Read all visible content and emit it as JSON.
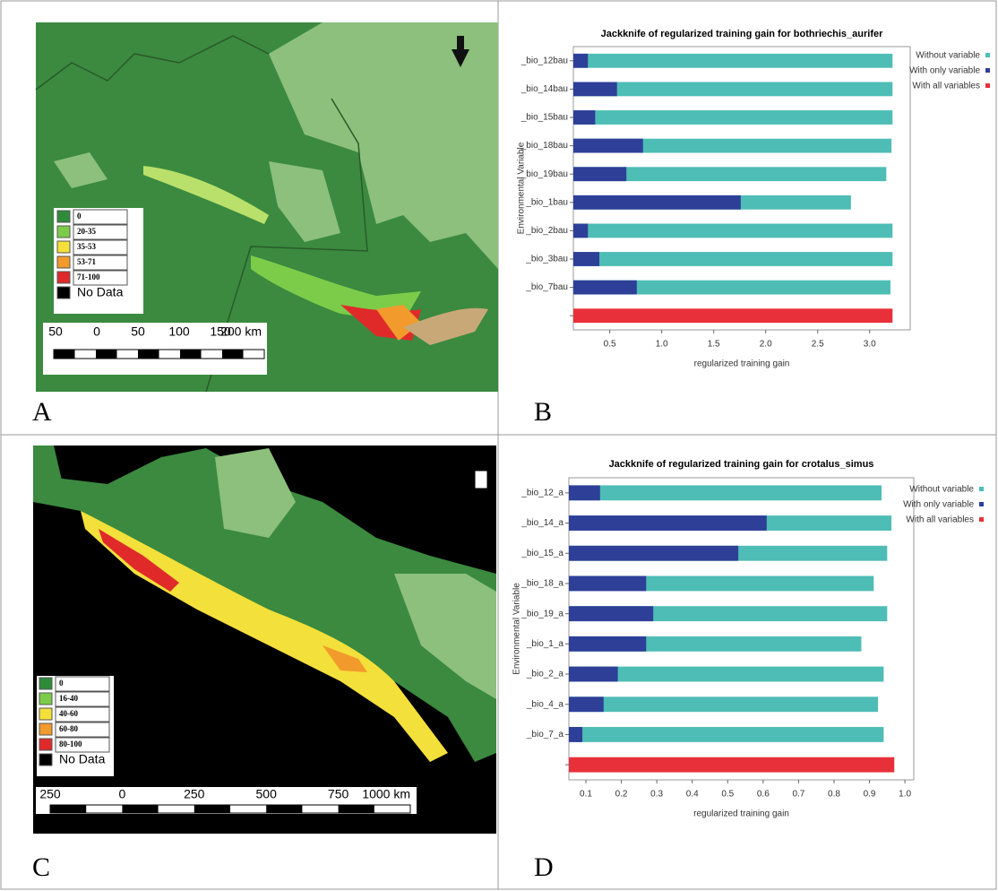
{
  "panel_labels": [
    "A",
    "B",
    "C",
    "D"
  ],
  "maps": [
    {
      "legend": [
        "0",
        "20-35",
        "35-53",
        "53-71",
        "71-100",
        "No Data"
      ],
      "legend_colors": [
        "#2e8b3a",
        "#7ccc4a",
        "#f4e03a",
        "#f39a2c",
        "#e02a2a",
        "#000000"
      ],
      "scale": [
        "50",
        "0",
        "50",
        "100",
        "150",
        "200 km"
      ]
    },
    {
      "legend": [
        "0",
        "16-40",
        "40-60",
        "60-80",
        "80-100",
        "No Data"
      ],
      "legend_colors": [
        "#2e8b3a",
        "#7ccc4a",
        "#f4e03a",
        "#f39a2c",
        "#e02a2a",
        "#000000"
      ],
      "scale": [
        "250",
        "0",
        "250",
        "500",
        "750",
        "1000 km"
      ]
    }
  ],
  "chart_data": [
    {
      "type": "barh",
      "title": "Jackknife of regularized training gain for bothriechis_aurifer",
      "xlabel": "regularized training gain",
      "ylabel": "Environmental Variable",
      "categories": [
        "_bio_12bau",
        "_bio_14bau",
        "_bio_15bau",
        "_bio_18bau",
        "_bio_19bau",
        "_bio_1bau",
        "_bio_2bau",
        "_bio_3bau",
        "_bio_7bau",
        null
      ],
      "series": [
        {
          "name": "Without variable",
          "color": "#4dbdb5",
          "values": [
            3.22,
            3.22,
            3.22,
            3.21,
            3.16,
            2.82,
            3.22,
            3.22,
            3.2,
            null
          ]
        },
        {
          "name": "With only variable",
          "color": "#2e3f98",
          "values": [
            0.29,
            0.57,
            0.36,
            0.82,
            0.66,
            1.76,
            0.29,
            0.4,
            0.76,
            null
          ]
        },
        {
          "name": "With all variables",
          "color": "#e8303a",
          "values": [
            null,
            null,
            null,
            null,
            null,
            null,
            null,
            null,
            null,
            3.22
          ]
        }
      ],
      "xlim": [
        0.15,
        3.39
      ],
      "xticks": [
        0.5,
        {
          "value": 1.0,
          "label": "1.0"
        },
        1.5,
        {
          "value": 2.0,
          "label": "2.0"
        },
        2.5,
        {
          "value": 3.0,
          "label": "3.0"
        }
      ],
      "grid": false,
      "legend": "right"
    },
    {
      "type": "barh",
      "title": "Jackknife of regularized training gain for crotalus_simus",
      "xlabel": "regularized training gain",
      "ylabel": "Environmental Variable",
      "categories": [
        "_bio_12_a",
        "_bio_14_a",
        "_bio_15_a",
        "_bio_18_a",
        "_bio_19_a",
        "_bio_1_a",
        "_bio_2_a",
        "_bio_4_a",
        "_bio_7_a",
        null
      ],
      "series": [
        {
          "name": "Without variable",
          "color": "#4dbdb5",
          "values": [
            0.934,
            0.962,
            0.95,
            0.912,
            0.95,
            0.877,
            0.94,
            0.924,
            0.94,
            null
          ]
        },
        {
          "name": "With only variable",
          "color": "#2e3f98",
          "values": [
            0.14,
            0.61,
            0.53,
            0.27,
            0.29,
            0.27,
            0.19,
            0.15,
            0.09,
            null
          ]
        },
        {
          "name": "With all variables",
          "color": "#e8303a",
          "values": [
            null,
            null,
            null,
            null,
            null,
            null,
            null,
            null,
            null,
            0.97
          ]
        }
      ],
      "xlim": [
        0.052,
        1.025
      ],
      "xticks": [
        0.1,
        0.2,
        0.3,
        0.4,
        0.5,
        0.6,
        0.7,
        0.8,
        0.9,
        {
          "value": 1.0,
          "label": "1.0"
        }
      ],
      "grid": false,
      "legend": "right"
    }
  ]
}
